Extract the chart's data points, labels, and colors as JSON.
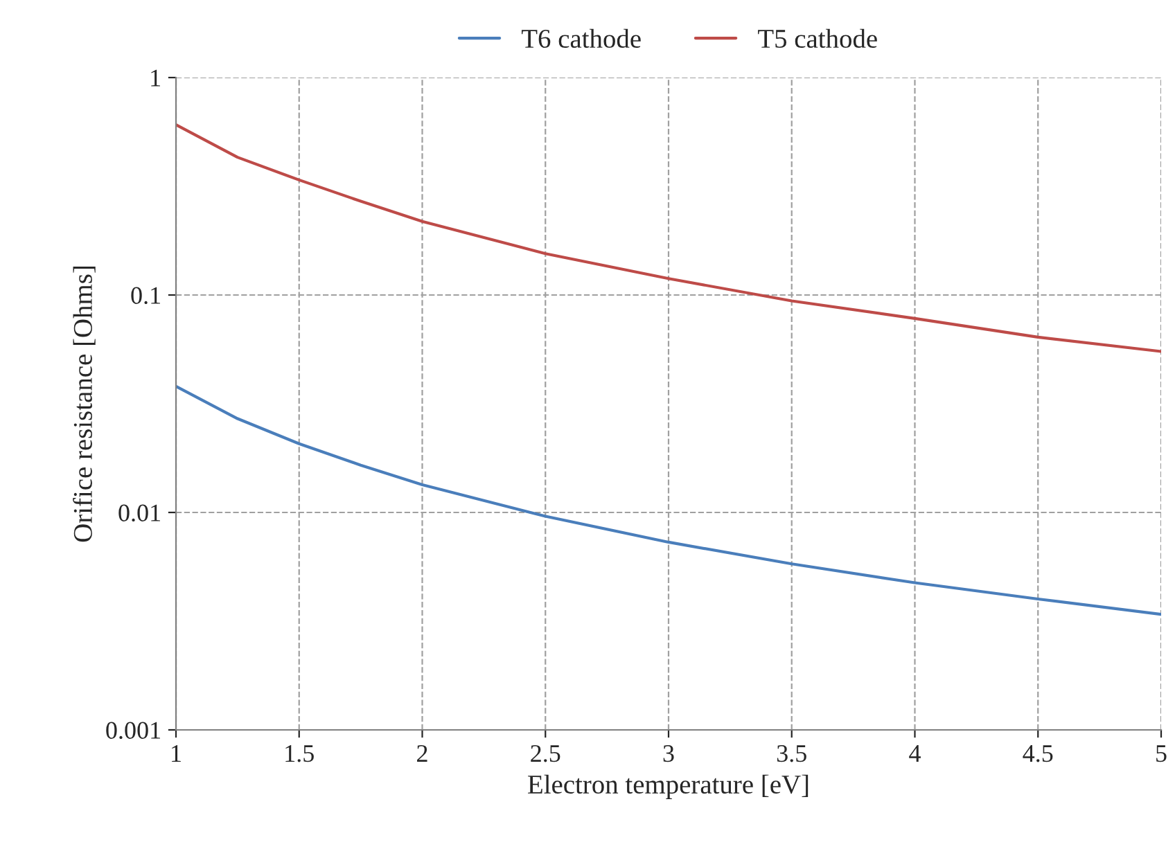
{
  "chart_data": {
    "type": "line",
    "xlabel": "Electron temperature [eV]",
    "ylabel": "Orifice resistance [Ohms]",
    "x": [
      1,
      1.25,
      1.5,
      1.75,
      2,
      2.5,
      3,
      3.5,
      4,
      4.5,
      5
    ],
    "series": [
      {
        "name": "T6 cathode",
        "color": "#4a7ebb",
        "values": [
          0.038,
          0.027,
          0.0207,
          0.0165,
          0.0134,
          0.0096,
          0.0073,
          0.0058,
          0.00475,
          0.004,
          0.0034
        ]
      },
      {
        "name": "T5 cathode",
        "color": "#be4b48",
        "values": [
          0.607,
          0.43,
          0.338,
          0.27,
          0.218,
          0.155,
          0.119,
          0.094,
          0.078,
          0.064,
          0.055
        ]
      }
    ],
    "log": "y",
    "xlim": [
      1,
      5
    ],
    "ylim": [
      0.001,
      1
    ],
    "xticks": [
      1,
      1.5,
      2,
      2.5,
      3,
      3.5,
      4,
      4.5,
      5
    ],
    "yticks": [
      0.001,
      0.01,
      0.1,
      1
    ],
    "grid": true,
    "legend": "top",
    "line_style": "solid",
    "marker": "none"
  }
}
